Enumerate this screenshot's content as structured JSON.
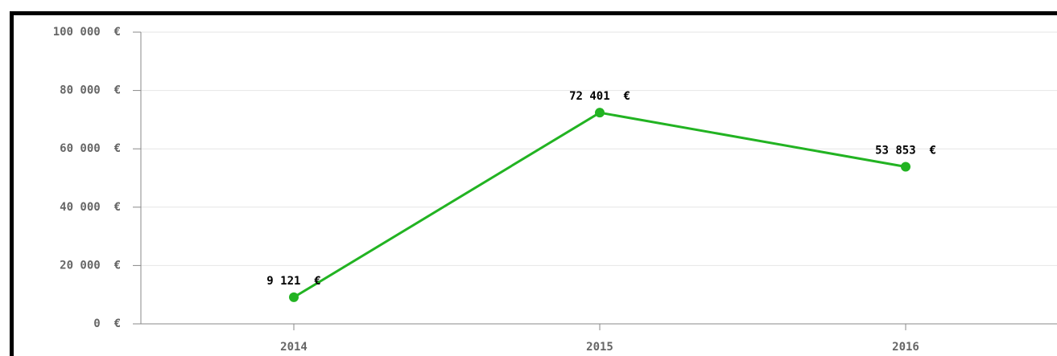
{
  "chart_data": {
    "type": "line",
    "categories": [
      "2014",
      "2015",
      "2016"
    ],
    "series": [
      {
        "color": "#22b322",
        "values": [
          9121,
          72401,
          53853
        ],
        "value_labels": [
          "9 121  €",
          "72 401  €",
          "53 853  €"
        ]
      }
    ],
    "ylim": [
      0,
      100000
    ],
    "yticks": [
      {
        "value": 0,
        "label": "0  €"
      },
      {
        "value": 20000,
        "label": "20 000  €"
      },
      {
        "value": 40000,
        "label": "40 000  €"
      },
      {
        "value": 60000,
        "label": "60 000  €"
      },
      {
        "value": 80000,
        "label": "80 000  €"
      },
      {
        "value": 100000,
        "label": "100 000  €"
      }
    ],
    "grid": true
  }
}
